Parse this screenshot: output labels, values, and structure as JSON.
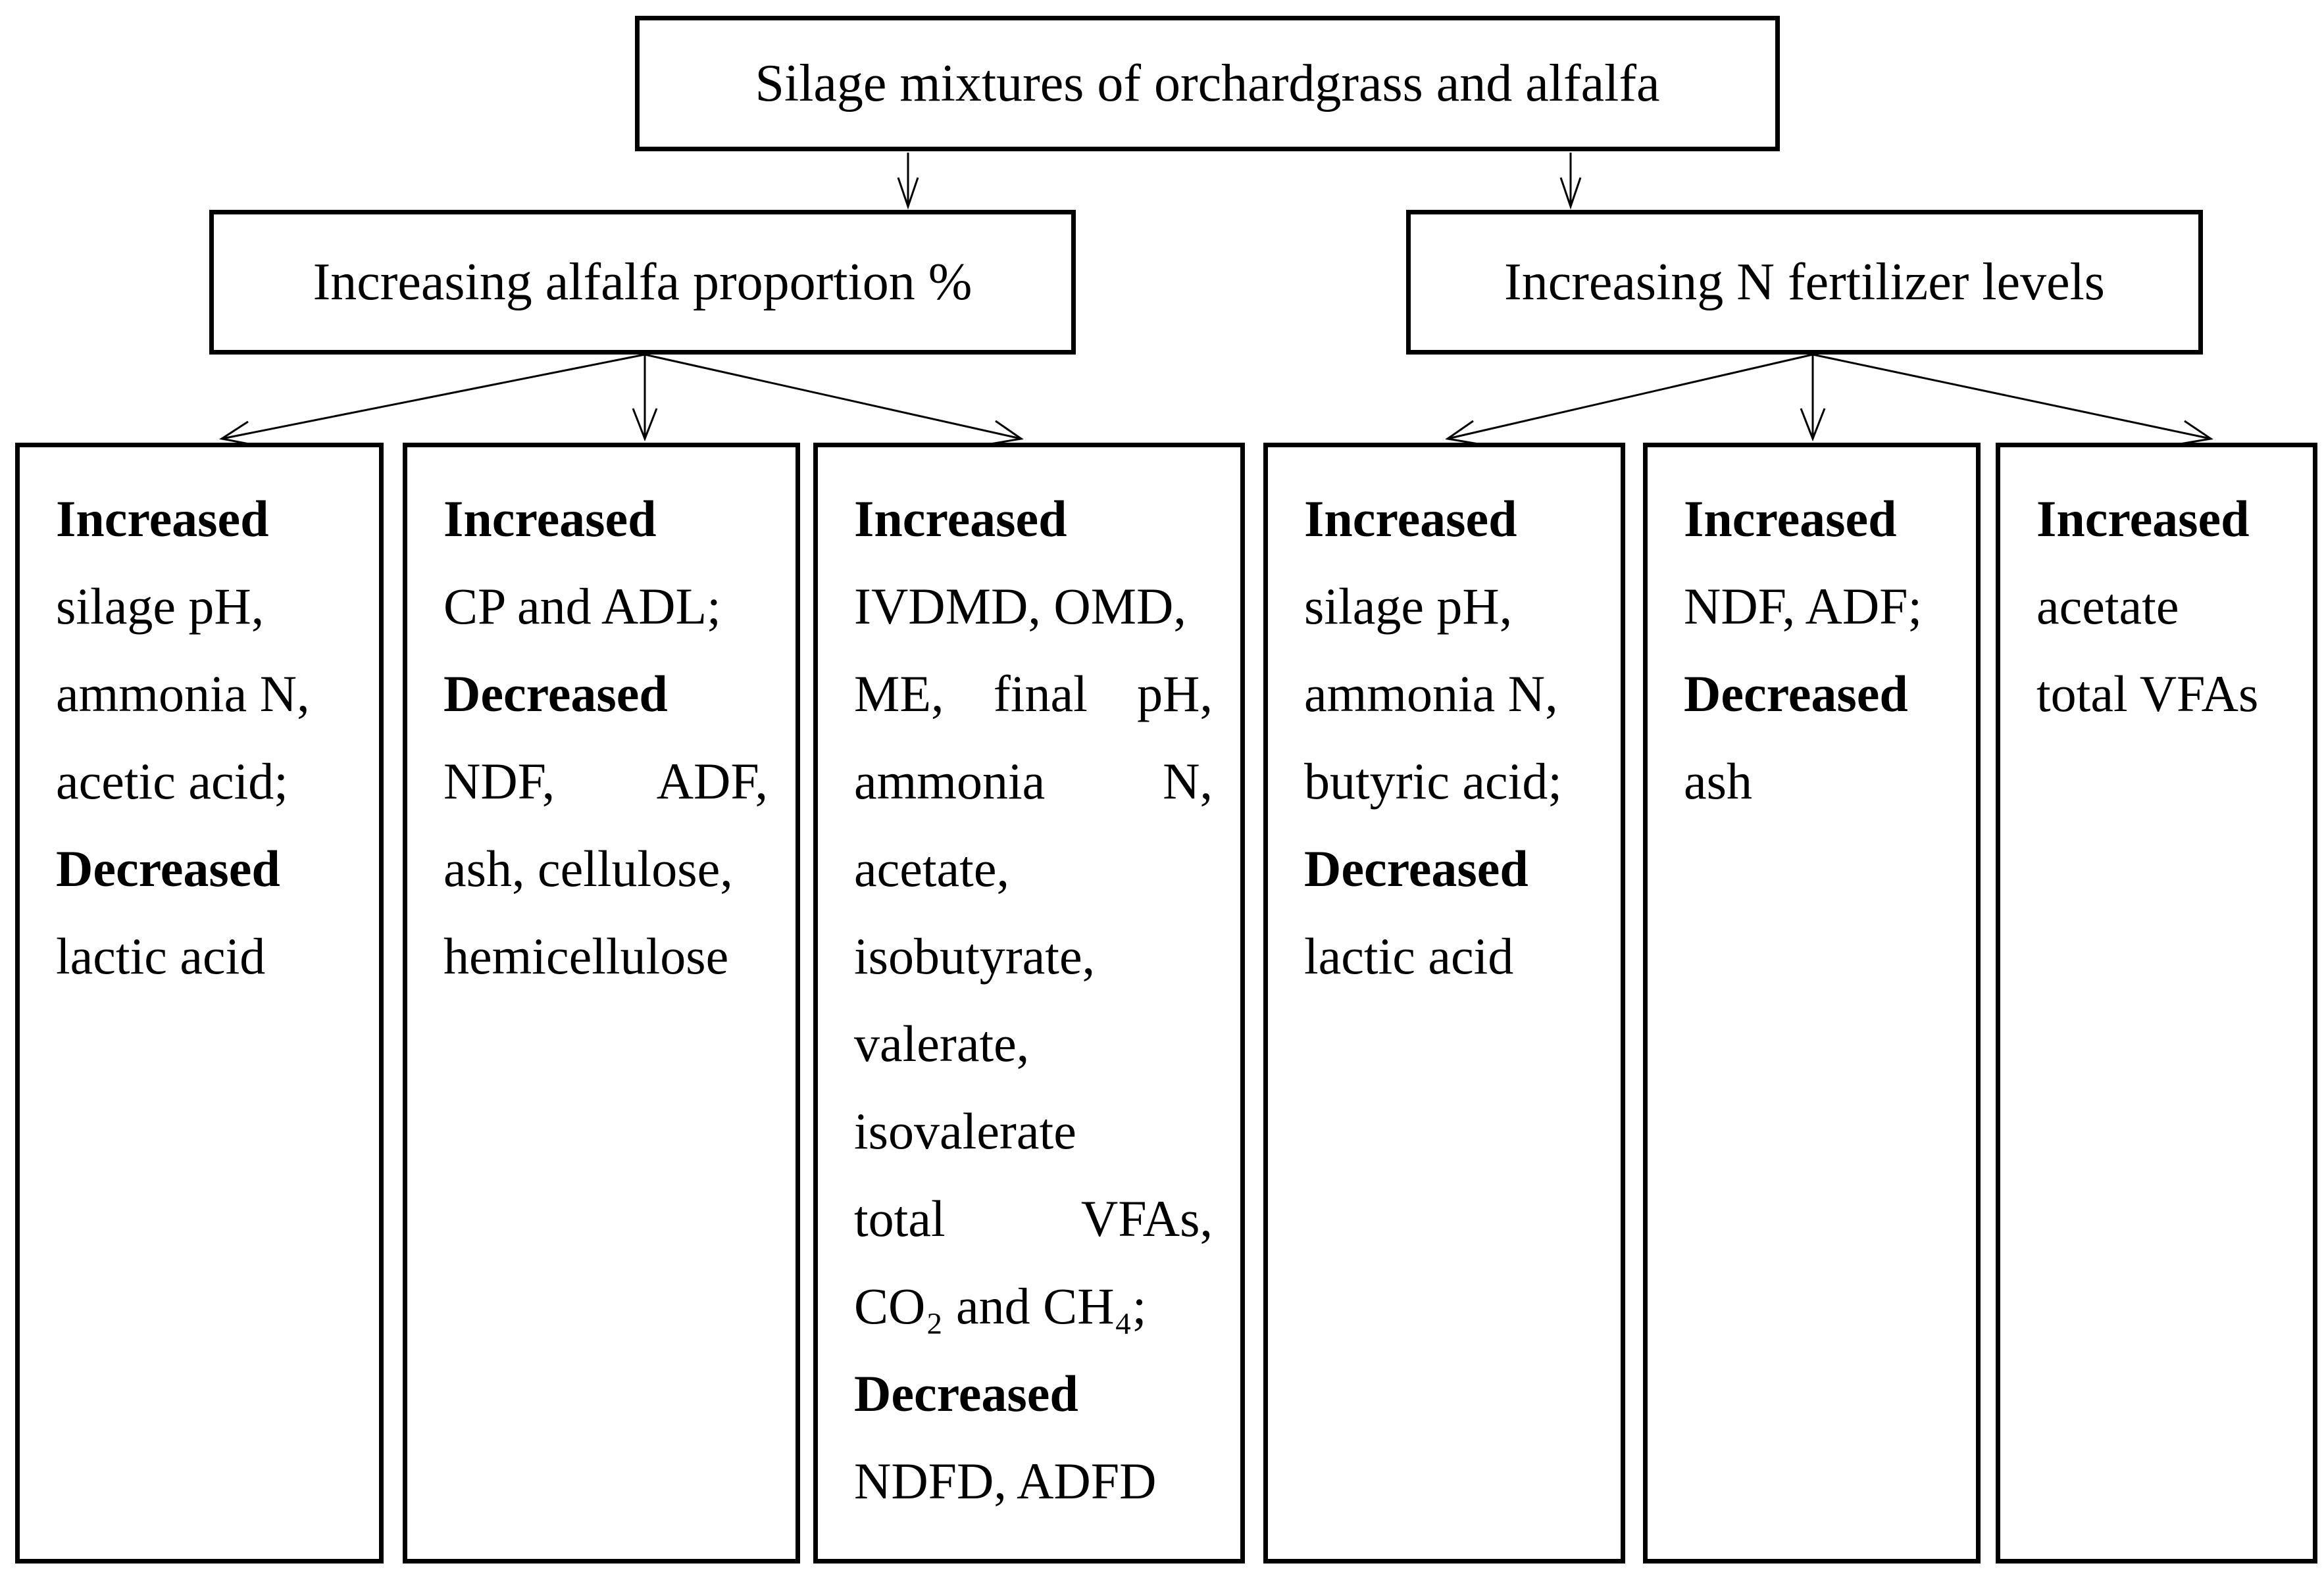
{
  "diagram": {
    "root": "Silage mixtures of orchardgrass and alfalfa",
    "branches": [
      {
        "label": "Increasing alfalfa proportion %",
        "outcomes": [
          {
            "lines": [
              {
                "t": "Increased",
                "b": 1
              },
              {
                "t": "silage pH,"
              },
              {
                "t": "ammonia N,"
              },
              {
                "t": "acetic acid;"
              },
              {
                "t": "Decreased",
                "b": 1
              },
              {
                "t": "lactic acid"
              }
            ]
          },
          {
            "lines": [
              {
                "t": "Increased",
                "b": 1
              },
              {
                "t": "CP and ADL;"
              },
              {
                "t": "Decreased",
                "b": 1
              },
              {
                "j": [
                  "NDF,",
                  "ADF,"
                ]
              },
              {
                "t": "ash, cellulose,"
              },
              {
                "t": "hemicellulose"
              }
            ]
          },
          {
            "lines": [
              {
                "t": "Increased",
                "b": 1
              },
              {
                "t": "IVDMD, OMD,"
              },
              {
                "j": [
                  "ME,",
                  "final",
                  "pH,"
                ]
              },
              {
                "j": [
                  "ammonia",
                  "N,"
                ]
              },
              {
                "t": "acetate,"
              },
              {
                "t": "isobutyrate,"
              },
              {
                "t": "valerate,"
              },
              {
                "t": "isovalerate"
              },
              {
                "j": [
                  "total",
                  "VFAs,"
                ]
              },
              {
                "t": "CO₂ and CH₄;"
              },
              {
                "t": "Decreased",
                "b": 1
              },
              {
                "t": "NDFD, ADFD"
              }
            ]
          }
        ]
      },
      {
        "label": "Increasing N fertilizer levels",
        "outcomes": [
          {
            "lines": [
              {
                "t": "Increased",
                "b": 1
              },
              {
                "t": "silage pH,"
              },
              {
                "t": "ammonia N,"
              },
              {
                "t": "butyric acid;"
              },
              {
                "t": "Decreased",
                "b": 1
              },
              {
                "t": "lactic acid"
              }
            ]
          },
          {
            "lines": [
              {
                "t": "Increased",
                "b": 1
              },
              {
                "t": "NDF, ADF;"
              },
              {
                "t": "Decreased",
                "b": 1
              },
              {
                "t": "ash"
              }
            ]
          },
          {
            "lines": [
              {
                "t": "Increased",
                "b": 1
              },
              {
                "t": "acetate"
              },
              {
                "t": "total VFAs"
              }
            ]
          }
        ]
      }
    ]
  }
}
